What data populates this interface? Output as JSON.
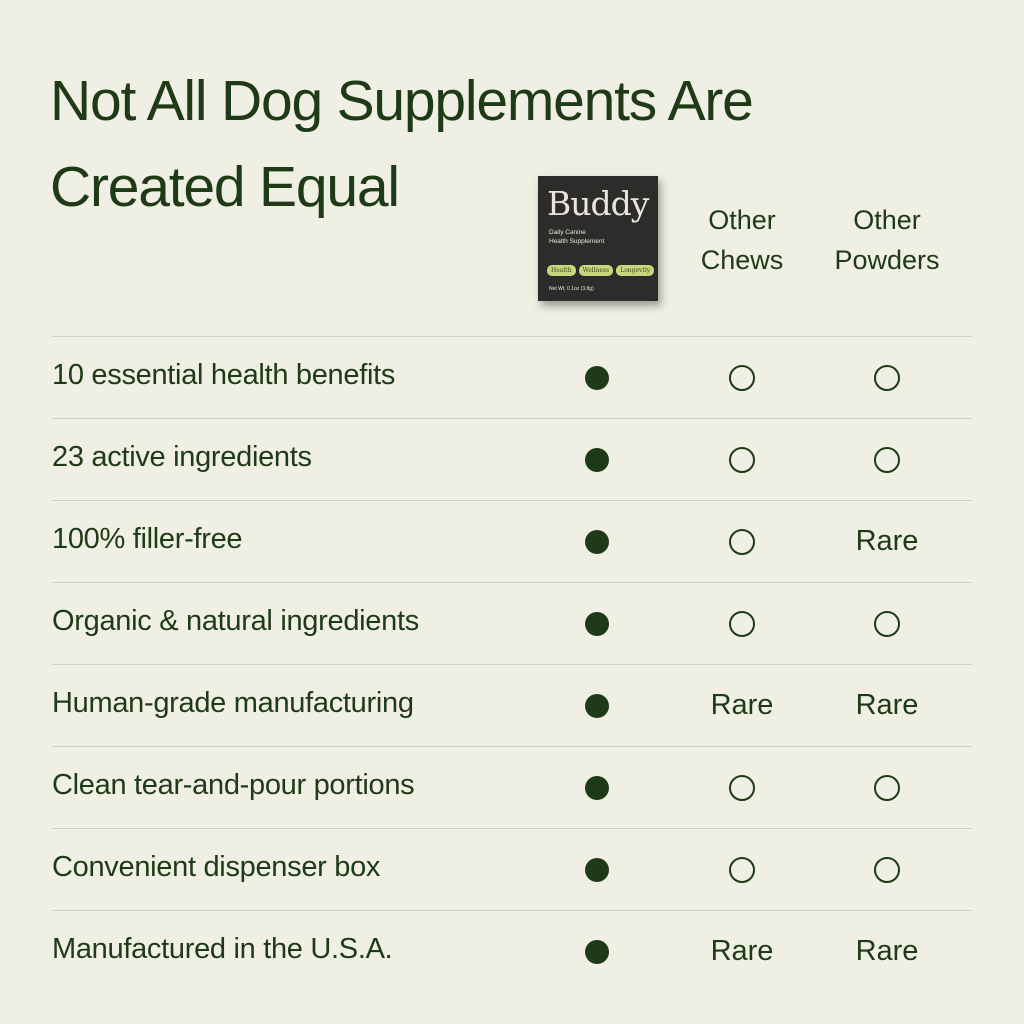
{
  "title_line1": "Not All Dog Supplements Are",
  "title_line2": "Created Equal",
  "product": {
    "brand": "Buddy",
    "subtitle_line1": "Daily Canine",
    "subtitle_line2": "Health Supplement",
    "tags": [
      "Health",
      "Wellness",
      "Longevity"
    ],
    "net_weight": "Net Wt. 0.1oz (3.8g)"
  },
  "columns": [
    {
      "line1": "Other",
      "line2": "Chews"
    },
    {
      "line1": "Other",
      "line2": "Powders"
    }
  ],
  "rows": [
    {
      "label": "10 essential health benefits",
      "buddy": "yes",
      "chews": "no",
      "powders": "no"
    },
    {
      "label": "23 active ingredients",
      "buddy": "yes",
      "chews": "no",
      "powders": "no"
    },
    {
      "label": "100% filler-free",
      "buddy": "yes",
      "chews": "no",
      "powders": "Rare"
    },
    {
      "label": "Organic & natural ingredients",
      "buddy": "yes",
      "chews": "no",
      "powders": "no"
    },
    {
      "label": "Human-grade manufacturing",
      "buddy": "yes",
      "chews": "Rare",
      "powders": "Rare"
    },
    {
      "label": "Clean tear-and-pour portions",
      "buddy": "yes",
      "chews": "no",
      "powders": "no"
    },
    {
      "label": "Convenient dispenser box",
      "buddy": "yes",
      "chews": "no",
      "powders": "no"
    },
    {
      "label": "Manufactured in the U.S.A.",
      "buddy": "yes",
      "chews": "Rare",
      "powders": "Rare"
    }
  ],
  "colors": {
    "background": "#efefe3",
    "text": "#1e3a16",
    "packet": "#2d2c2a",
    "tag": "#c9d77a"
  }
}
